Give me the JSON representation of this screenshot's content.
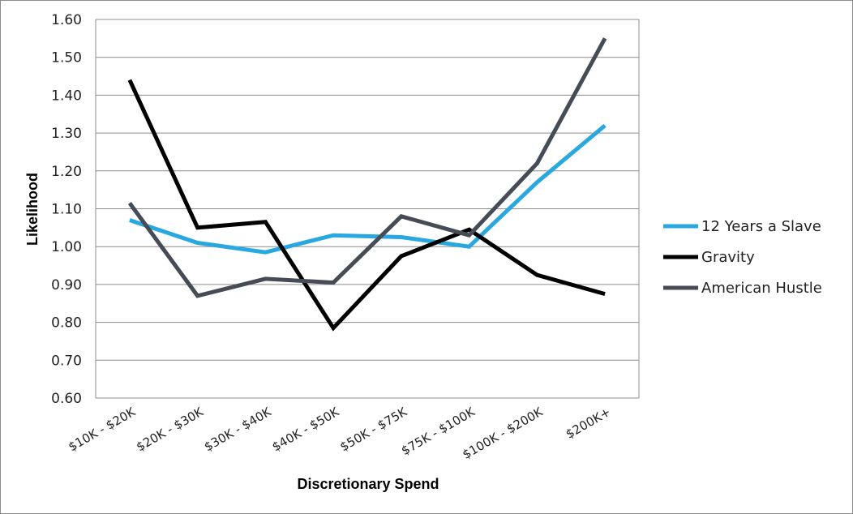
{
  "chart_data": {
    "type": "line",
    "title": "",
    "xlabel": "Discretionary Spend",
    "ylabel": "Likelihood",
    "categories": [
      "$10K - $20K",
      "$20K - $30K",
      "$30K - $40K",
      "$40K - $50K",
      "$50K - $75K",
      "$75K - $100K",
      "$100K - $200K",
      "$200K+"
    ],
    "ylim": [
      0.6,
      1.6
    ],
    "yticks": [
      "0.60",
      "0.70",
      "0.80",
      "0.90",
      "1.00",
      "1.10",
      "1.20",
      "1.30",
      "1.40",
      "1.50",
      "1.60"
    ],
    "grid": true,
    "legend_position": "right",
    "series": [
      {
        "name": "12 Years a Slave",
        "color": "#29a8e0",
        "values": [
          1.07,
          1.01,
          0.985,
          1.03,
          1.025,
          1.0,
          1.17,
          1.32
        ]
      },
      {
        "name": "Gravity",
        "color": "#000000",
        "values": [
          1.44,
          1.05,
          1.065,
          0.785,
          0.975,
          1.045,
          0.925,
          0.875
        ]
      },
      {
        "name": "American Hustle",
        "color": "#454c55",
        "values": [
          1.115,
          0.87,
          0.915,
          0.905,
          1.08,
          1.03,
          1.22,
          1.55
        ]
      }
    ]
  }
}
